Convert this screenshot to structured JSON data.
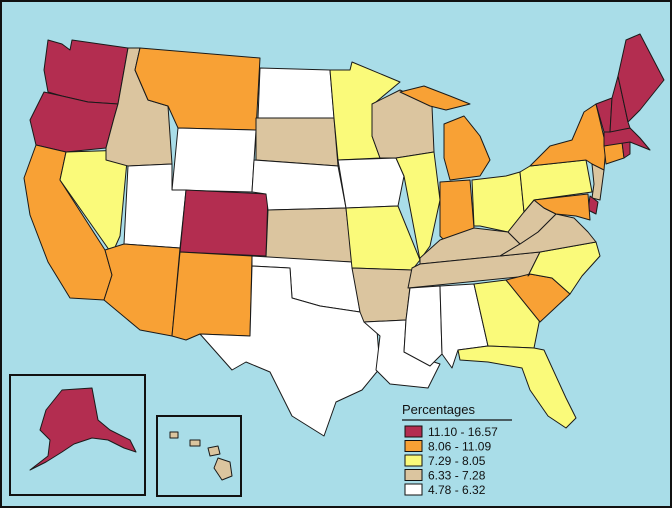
{
  "legend": {
    "title": "Percentages",
    "classes": [
      {
        "label": "11.10 - 16.57",
        "color": "#b32d50"
      },
      {
        "label": "8.06 - 11.09",
        "color": "#f8a135"
      },
      {
        "label": "7.29 - 8.05",
        "color": "#fafa7a"
      },
      {
        "label": "6.33 - 7.28",
        "color": "#dbc59f"
      },
      {
        "label": "4.78 - 6.32",
        "color": "#ffffff"
      }
    ]
  },
  "colors": {
    "ocean": "#a9dde8",
    "border": "#1a1a1a"
  },
  "states": {
    "WA": "11.10 - 16.57",
    "OR": "11.10 - 16.57",
    "CO": "11.10 - 16.57",
    "ME": "11.10 - 16.57",
    "NH": "11.10 - 16.57",
    "VT": "11.10 - 16.57",
    "MA": "11.10 - 16.57",
    "RI": "11.10 - 16.57",
    "DE": "11.10 - 16.57",
    "AK": "11.10 - 16.57",
    "CA": "8.06 - 11.09",
    "MT": "8.06 - 11.09",
    "AZ": "8.06 - 11.09",
    "NM": "8.06 - 11.09",
    "MI": "8.06 - 11.09",
    "IN": "8.06 - 11.09",
    "NY": "8.06 - 11.09",
    "SC": "8.06 - 11.09",
    "CT": "8.06 - 11.09",
    "MD": "8.06 - 11.09",
    "NV": "7.29 - 8.05",
    "MN": "7.29 - 8.05",
    "IL": "7.29 - 8.05",
    "MO": "7.29 - 8.05",
    "OH": "7.29 - 8.05",
    "PA": "7.29 - 8.05",
    "NC": "7.29 - 8.05",
    "GA": "7.29 - 8.05",
    "FL": "7.29 - 8.05",
    "HI": "6.33 - 7.28",
    "ID": "6.33 - 7.28",
    "SD": "6.33 - 7.28",
    "KS": "6.33 - 7.28",
    "WI": "6.33 - 7.28",
    "AR": "6.33 - 7.28",
    "KY": "6.33 - 7.28",
    "TN": "6.33 - 7.28",
    "WV": "6.33 - 7.28",
    "VA": "6.33 - 7.28",
    "NJ": "6.33 - 7.28",
    "UT": "4.78 - 6.32",
    "WY": "4.78 - 6.32",
    "ND": "4.78 - 6.32",
    "NE": "4.78 - 6.32",
    "IA": "4.78 - 6.32",
    "OK": "4.78 - 6.32",
    "TX": "4.78 - 6.32",
    "LA": "4.78 - 6.32",
    "MS": "4.78 - 6.32",
    "AL": "4.78 - 6.32"
  }
}
